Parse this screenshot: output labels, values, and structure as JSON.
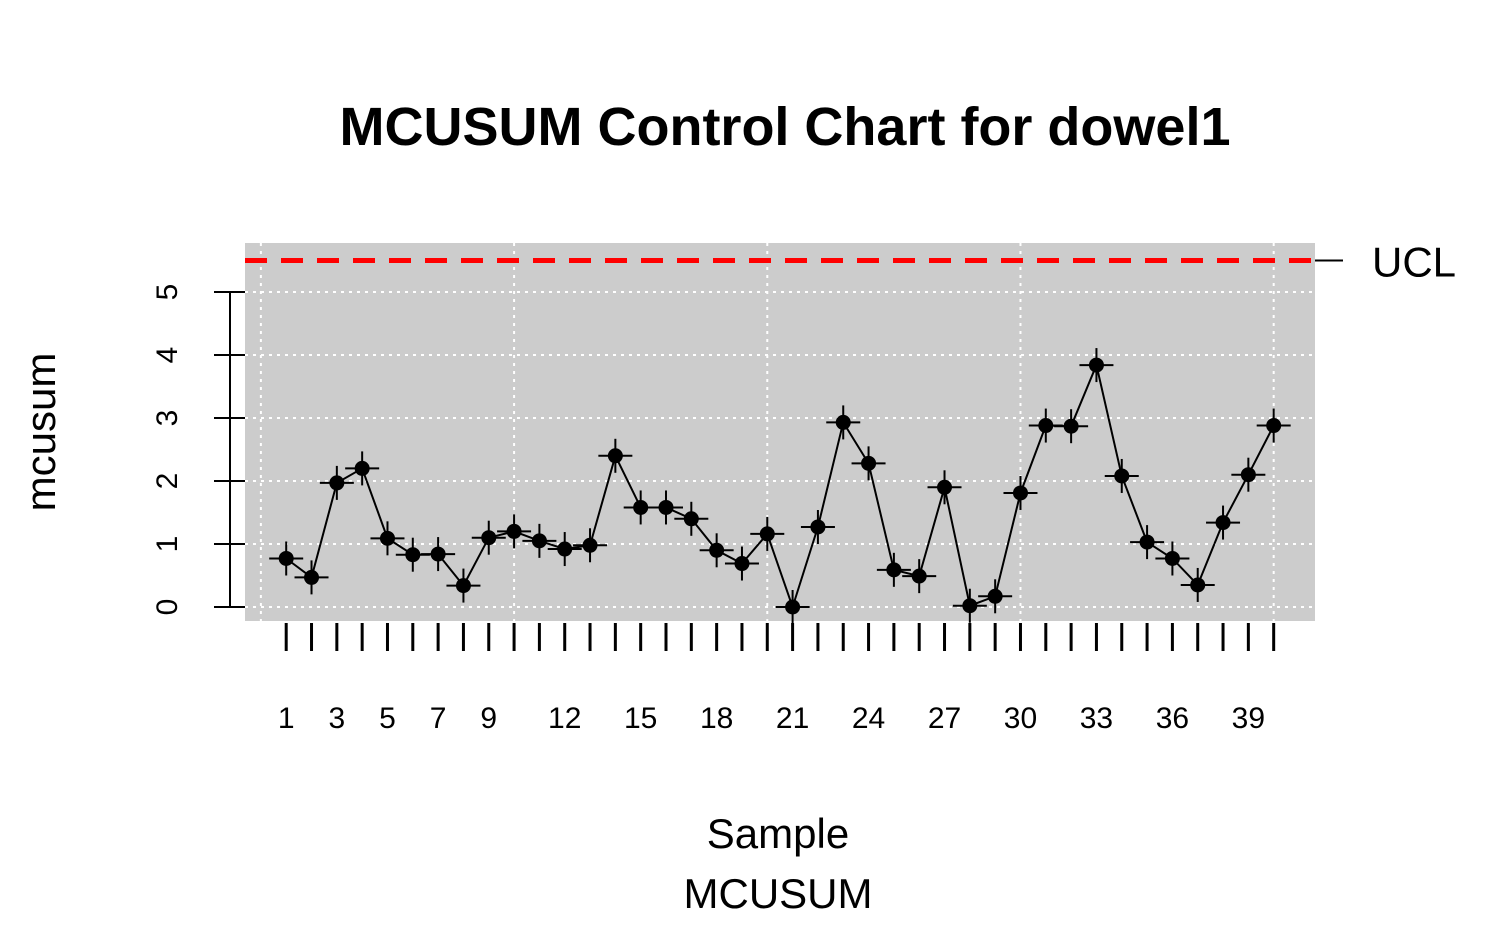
{
  "chart_data": {
    "type": "line",
    "title": "MCUSUM Control Chart for dowel1",
    "xlabel": "Sample",
    "xlabel2": "MCUSUM",
    "ylabel": "mcusum",
    "x": [
      1,
      2,
      3,
      4,
      5,
      6,
      7,
      8,
      9,
      10,
      11,
      12,
      13,
      14,
      15,
      16,
      17,
      18,
      19,
      20,
      21,
      22,
      23,
      24,
      25,
      26,
      27,
      28,
      29,
      30,
      31,
      32,
      33,
      34,
      35,
      36,
      37,
      38,
      39,
      40
    ],
    "x_tick_labels": [
      1,
      3,
      5,
      7,
      9,
      12,
      15,
      18,
      21,
      24,
      27,
      30,
      33,
      36,
      39
    ],
    "y_ticks": [
      0,
      1,
      2,
      3,
      4,
      5
    ],
    "xlim": [
      0.1,
      41.9
    ],
    "ylim": [
      -0.22,
      5.82
    ],
    "series": [
      {
        "values": [
          0.77,
          0.47,
          1.97,
          2.2,
          1.09,
          0.83,
          0.84,
          0.34,
          1.1,
          1.2,
          1.05,
          0.92,
          0.98,
          2.4,
          1.58,
          1.58,
          1.4,
          0.9,
          0.69,
          1.16,
          0.0,
          1.27,
          2.93,
          2.28,
          0.59,
          0.49,
          1.9,
          0.02,
          0.17,
          1.81,
          2.88,
          2.87,
          3.84,
          2.08,
          1.03,
          0.77,
          0.35,
          1.34,
          2.1,
          2.88
        ],
        "color": "#000000"
      }
    ],
    "ucl": {
      "label": "UCL",
      "value": 5.5,
      "color": "#ff0000"
    },
    "panel_color": "#cccccc",
    "grid": true
  }
}
